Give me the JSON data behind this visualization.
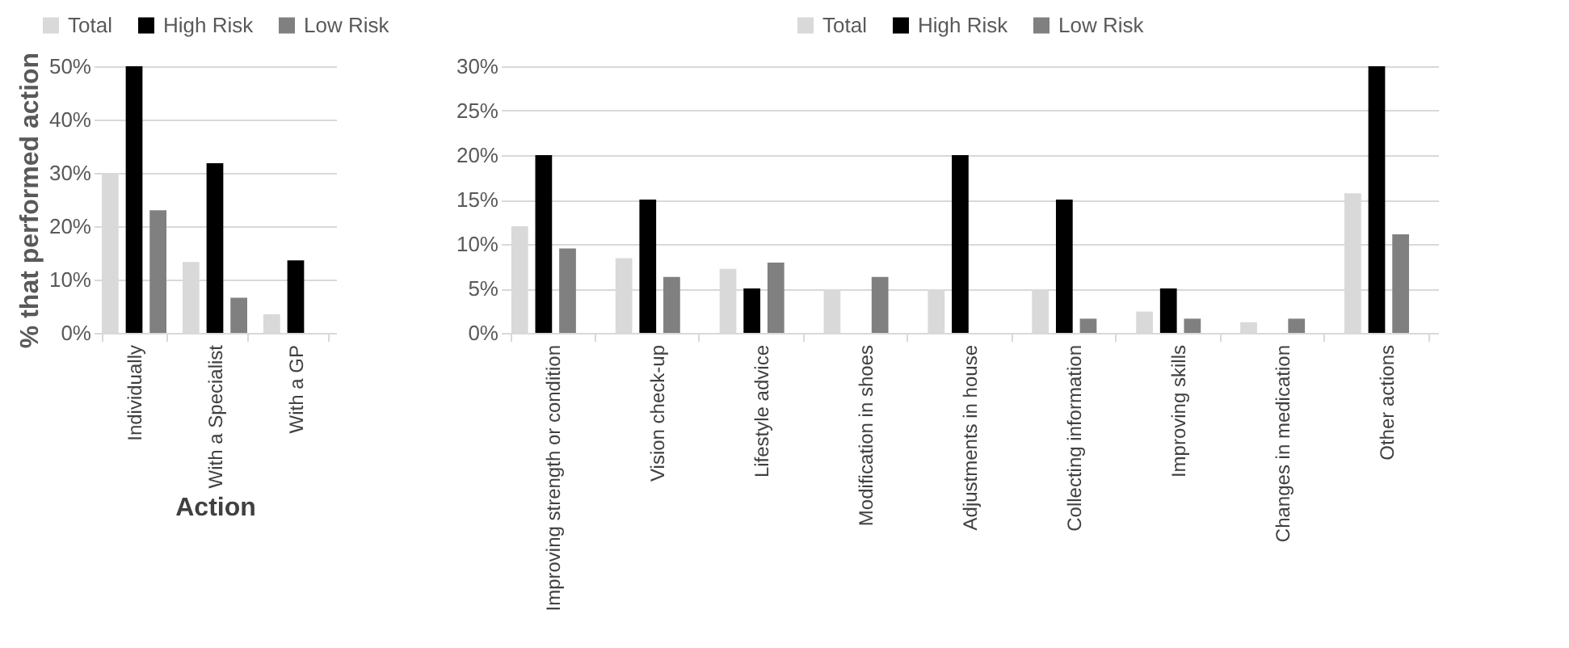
{
  "chart_data": [
    {
      "type": "bar",
      "xlabel": "Action",
      "ylabel": "% that performed action",
      "categories": [
        "Individually",
        "With a Specialist",
        "With a GP"
      ],
      "series": [
        {
          "name": "Total",
          "color": "#d9d9d9",
          "values": [
            30,
            13.3,
            3.5
          ]
        },
        {
          "name": "High Risk",
          "color": "#000000",
          "values": [
            50,
            31.8,
            13.6
          ]
        },
        {
          "name": "Low Risk",
          "color": "#808080",
          "values": [
            23,
            6.6,
            0
          ]
        }
      ],
      "ylim": [
        0,
        50
      ],
      "yticks": [
        {
          "value": 0,
          "label": "0%"
        },
        {
          "value": 10,
          "label": "10%"
        },
        {
          "value": 20,
          "label": "20%"
        },
        {
          "value": 30,
          "label": "30%"
        },
        {
          "value": 40,
          "label": "40%"
        },
        {
          "value": 50,
          "label": "50%"
        }
      ],
      "grid": "y",
      "legend": "top"
    },
    {
      "type": "bar",
      "categories": [
        "Improving strength or condition",
        "Vision check-up",
        "Lifestyle advice",
        "Modification in shoes",
        "Adjustments in house",
        "Collecting information",
        "Improving skills",
        "Changes in medication",
        "Other actions"
      ],
      "series": [
        {
          "name": "Total",
          "color": "#d9d9d9",
          "values": [
            12,
            8.4,
            7.2,
            4.8,
            4.8,
            4.8,
            2.4,
            1.2,
            15.7
          ]
        },
        {
          "name": "High Risk",
          "color": "#000000",
          "values": [
            20,
            15,
            5,
            0,
            20,
            15,
            5,
            0,
            30
          ]
        },
        {
          "name": "Low Risk",
          "color": "#808080",
          "values": [
            9.5,
            6.3,
            7.9,
            6.3,
            0,
            1.6,
            1.6,
            1.6,
            11.1
          ]
        }
      ],
      "ylim": [
        0,
        30
      ],
      "yticks": [
        {
          "value": 0,
          "label": "0%"
        },
        {
          "value": 5,
          "label": "5%"
        },
        {
          "value": 10,
          "label": "10%"
        },
        {
          "value": 15,
          "label": "15%"
        },
        {
          "value": 20,
          "label": "20%"
        },
        {
          "value": 25,
          "label": "25%"
        },
        {
          "value": 30,
          "label": "30%"
        }
      ],
      "grid": "y",
      "legend": "top"
    }
  ]
}
